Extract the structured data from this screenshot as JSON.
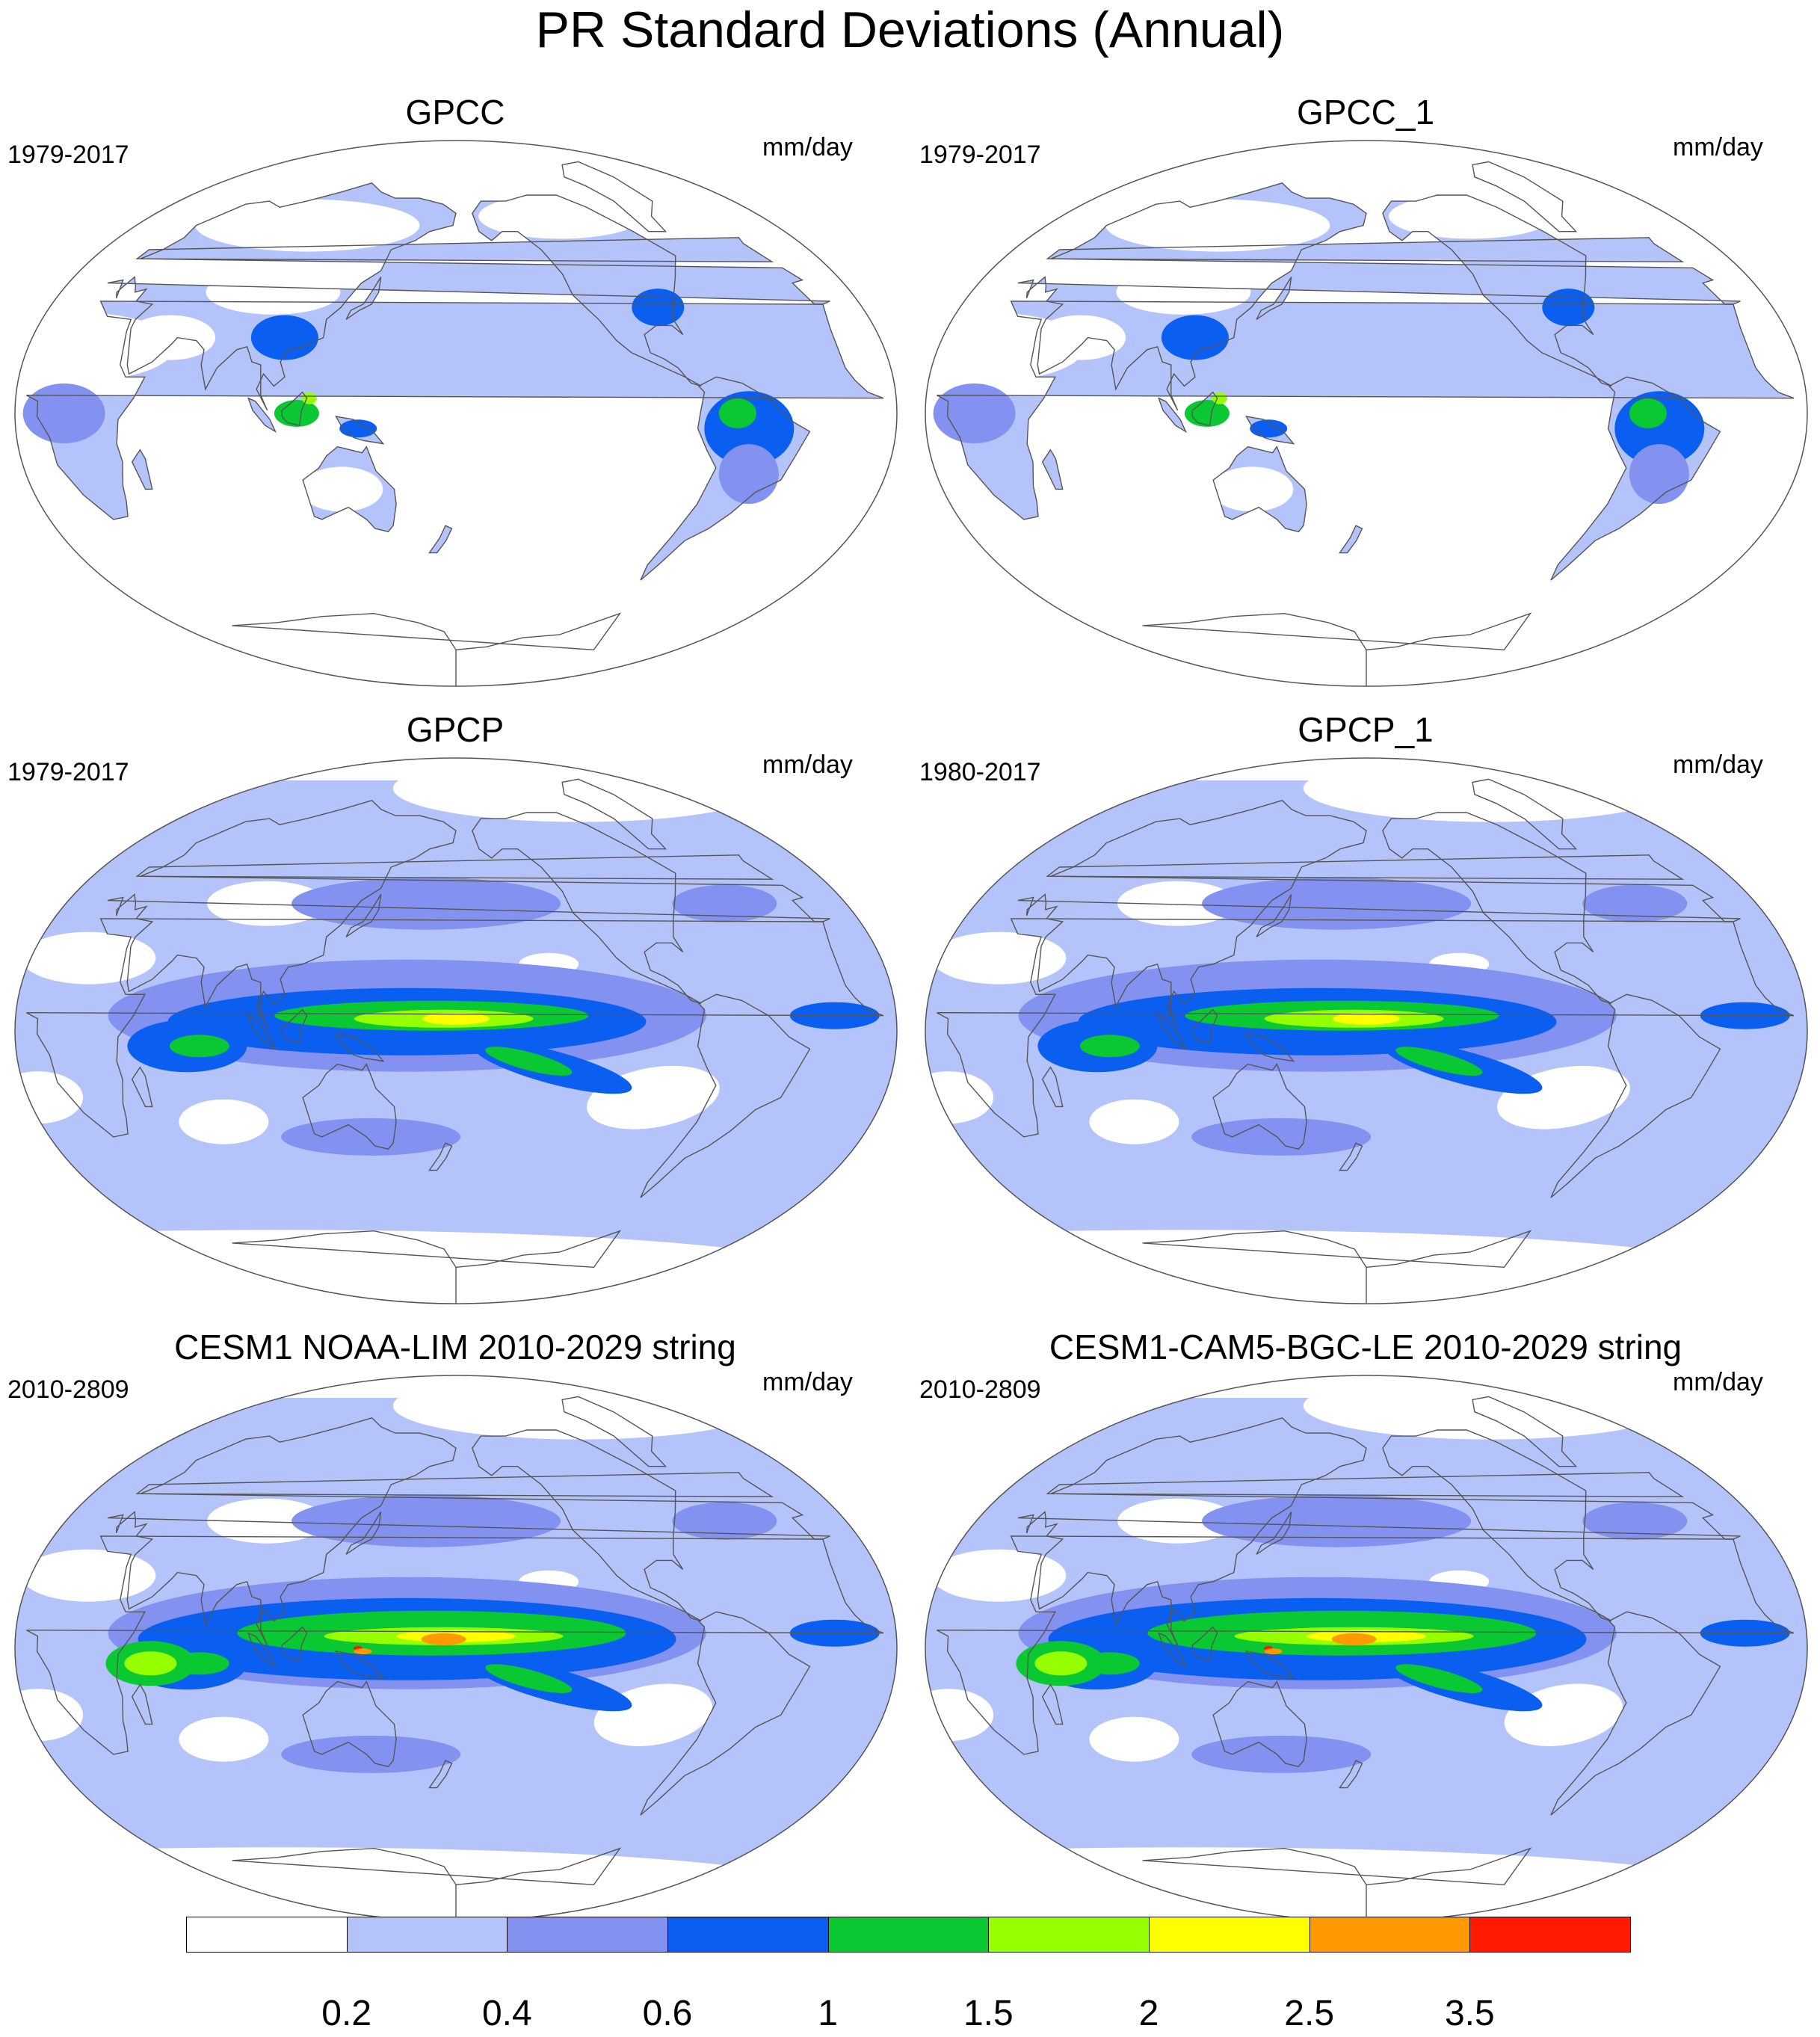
{
  "title": "PR Standard Deviations (Annual)",
  "panels": [
    {
      "title": "GPCC",
      "period": "1979-2017",
      "units": "mm/day",
      "kind": "land"
    },
    {
      "title": "GPCC_1",
      "period": "1979-2017",
      "units": "mm/day",
      "kind": "land"
    },
    {
      "title": "GPCP",
      "period": "1979-2017",
      "units": "mm/day",
      "kind": "obs"
    },
    {
      "title": "GPCP_1",
      "period": "1980-2017",
      "units": "mm/day",
      "kind": "obs"
    },
    {
      "title": "CESM1 NOAA-LIM 2010-2029 string",
      "period": "2010-2809",
      "units": "mm/day",
      "kind": "model"
    },
    {
      "title": "CESM1-CAM5-BGC-LE 2010-2029 string",
      "period": "2010-2809",
      "units": "mm/day",
      "kind": "model"
    }
  ],
  "colorbar": {
    "levels": [
      "0.2",
      "0.4",
      "0.6",
      "1",
      "1.5",
      "2",
      "2.5",
      "3.5"
    ],
    "colors": [
      "#ffffff",
      "#b4c3fa",
      "#8391f0",
      "#0a5ff0",
      "#0ac832",
      "#96ff00",
      "#ffff00",
      "#ff9900",
      "#ff1a00"
    ]
  }
}
